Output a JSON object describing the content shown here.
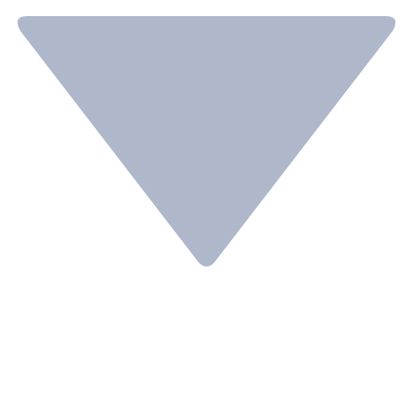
{
  "icon": {
    "name": "triangle-down",
    "shape": "inverted-triangle",
    "fill_color": "#aeb8ca",
    "background_color": "#ffffff"
  }
}
